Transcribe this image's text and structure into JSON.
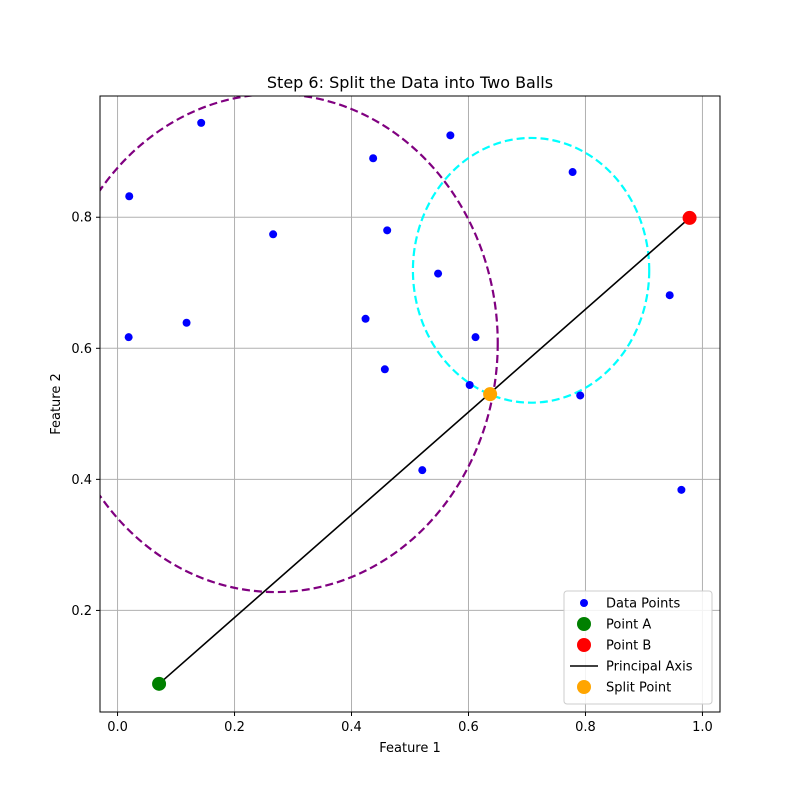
{
  "chart_data": {
    "type": "scatter",
    "title": "Step 6: Split the Data into Two Balls",
    "xlabel": "Feature 1",
    "ylabel": "Feature 2",
    "xlim": [
      -0.03,
      1.03
    ],
    "ylim": [
      0.045,
      0.985
    ],
    "xticks": [
      0.0,
      0.2,
      0.4,
      0.6,
      0.8,
      1.0
    ],
    "xtick_labels": [
      "0.0",
      "0.2",
      "0.4",
      "0.6",
      "0.8",
      "1.0"
    ],
    "yticks": [
      0.2,
      0.4,
      0.6,
      0.8
    ],
    "ytick_labels": [
      "0.2",
      "0.4",
      "0.6",
      "0.8"
    ],
    "grid": true,
    "legend_position": "lower-right",
    "series": [
      {
        "name": "Data Points",
        "kind": "scatter",
        "color": "#0000ff",
        "points": [
          [
            0.143,
            0.944
          ],
          [
            0.569,
            0.925
          ],
          [
            0.437,
            0.89
          ],
          [
            0.778,
            0.869
          ],
          [
            0.02,
            0.832
          ],
          [
            0.266,
            0.774
          ],
          [
            0.461,
            0.78
          ],
          [
            0.548,
            0.714
          ],
          [
            0.944,
            0.681
          ],
          [
            0.019,
            0.617
          ],
          [
            0.118,
            0.639
          ],
          [
            0.424,
            0.645
          ],
          [
            0.612,
            0.617
          ],
          [
            0.457,
            0.568
          ],
          [
            0.602,
            0.544
          ],
          [
            0.791,
            0.528
          ],
          [
            0.521,
            0.414
          ],
          [
            0.964,
            0.384
          ]
        ]
      },
      {
        "name": "Point A",
        "kind": "marker",
        "color": "#008000",
        "points": [
          [
            0.071,
            0.088
          ]
        ]
      },
      {
        "name": "Point B",
        "kind": "marker",
        "color": "#ff0000",
        "points": [
          [
            0.978,
            0.799
          ]
        ]
      },
      {
        "name": "Principal Axis",
        "kind": "line",
        "color": "#000000",
        "points": [
          [
            0.071,
            0.088
          ],
          [
            0.978,
            0.799
          ]
        ]
      },
      {
        "name": "Split Point",
        "kind": "marker",
        "color": "#ffa500",
        "points": [
          [
            0.637,
            0.53
          ]
        ]
      }
    ],
    "balls": [
      {
        "center": [
          0.27,
          0.608
        ],
        "radius": 0.38,
        "color": "#800080",
        "style": "dashed"
      },
      {
        "center": [
          0.707,
          0.719
        ],
        "radius": 0.202,
        "color": "#00ffff",
        "style": "dashed"
      }
    ]
  }
}
